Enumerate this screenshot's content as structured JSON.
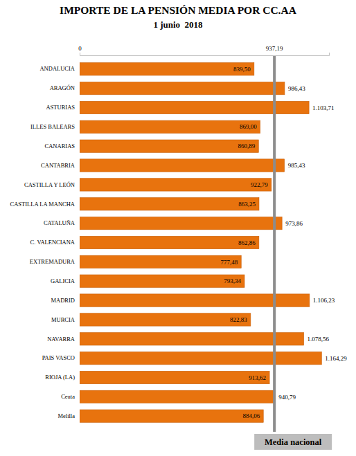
{
  "chart_data": {
    "type": "bar",
    "orientation": "horizontal",
    "title": "IMPORTE DE LA PENSIÓN MEDIA POR CC.AA",
    "subtitle": "1 junio  2018",
    "categories": [
      "ANDALUCIA",
      "ARAGÓN",
      "ASTURIAS",
      "ILLES BALEARS",
      "CANARIAS",
      "CANTABRIA",
      "CASTILLA Y LEÓN",
      "CASTILLA LA MANCHA",
      "CATALUÑA",
      "C. VALENCIANA",
      "EXTREMADURA",
      "GALICIA",
      "MADRID",
      "MURCIA",
      "NAVARRA",
      "PAIS VASCO",
      "RIOJA (LA)",
      "Ceuta",
      "Melilla"
    ],
    "values": [
      839.5,
      986.43,
      1103.71,
      869.0,
      860.89,
      985.43,
      922.79,
      863.25,
      973.86,
      862.86,
      777.48,
      793.34,
      1106.23,
      822.83,
      1078.56,
      1164.29,
      913.62,
      940.79,
      884.06
    ],
    "value_labels": [
      "839,50",
      "986,43",
      "1.103,71",
      "869,00",
      "860,89",
      "985,43",
      "922,79",
      "863,25",
      "973,86",
      "862,86",
      "777,48",
      "793,34",
      "1.106,23",
      "822,83",
      "1.078,56",
      "1.164,29",
      "913,62",
      "940,79",
      "884,06"
    ],
    "data_labels": true,
    "color": "#e8730e",
    "xlim": [
      0,
      1200
    ],
    "xticks": [
      0
    ],
    "grid": false,
    "reference_line": {
      "value": 937.19,
      "label": "937,19",
      "name": "Media nacional"
    }
  }
}
